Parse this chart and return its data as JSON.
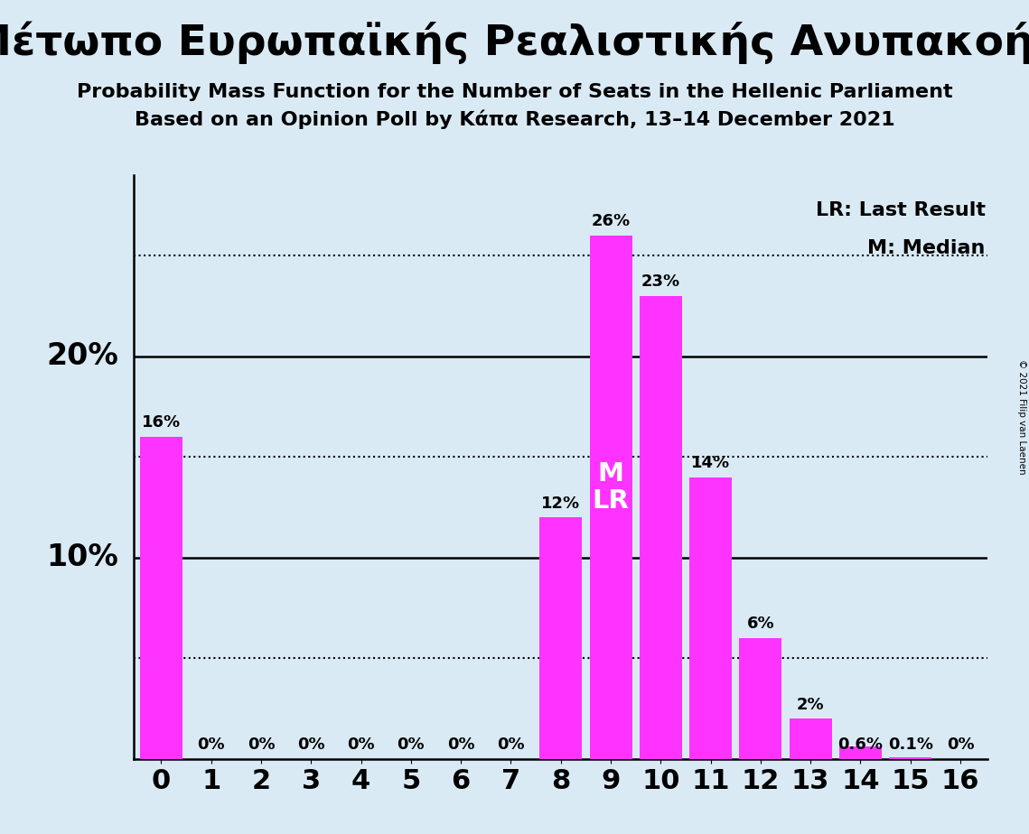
{
  "title_greek": "Μέτωπο Ευρωπαϊκής Ρεαλιστικής Ανυπακοής",
  "subtitle1": "Probability Mass Function for the Number of Seats in the Hellenic Parliament",
  "subtitle2": "Based on an Opinion Poll by Κάπα Research, 13–14 December 2021",
  "copyright": "© 2021 Filip van Laenen",
  "categories": [
    0,
    1,
    2,
    3,
    4,
    5,
    6,
    7,
    8,
    9,
    10,
    11,
    12,
    13,
    14,
    15,
    16
  ],
  "values": [
    0.16,
    0.0,
    0.0,
    0.0,
    0.0,
    0.0,
    0.0,
    0.0,
    0.12,
    0.26,
    0.23,
    0.14,
    0.06,
    0.02,
    0.006,
    0.001,
    0.0
  ],
  "labels": [
    "16%",
    "0%",
    "0%",
    "0%",
    "0%",
    "0%",
    "0%",
    "0%",
    "12%",
    "26%",
    "23%",
    "14%",
    "6%",
    "2%",
    "0.6%",
    "0.1%",
    "0%"
  ],
  "bar_color": "#FF33FF",
  "background_color": "#daeaf5",
  "median_value": 9,
  "last_result_value": 9,
  "dotted_lines": [
    0.25,
    0.15,
    0.05
  ],
  "solid_lines": [
    0.2,
    0.1
  ],
  "ylim": [
    0,
    0.29
  ],
  "title_fontsize": 34,
  "subtitle_fontsize": 16,
  "bar_label_fontsize": 13,
  "axis_tick_fontsize": 22,
  "axis_ylabel_fontsize": 24,
  "legend_fontsize": 16
}
